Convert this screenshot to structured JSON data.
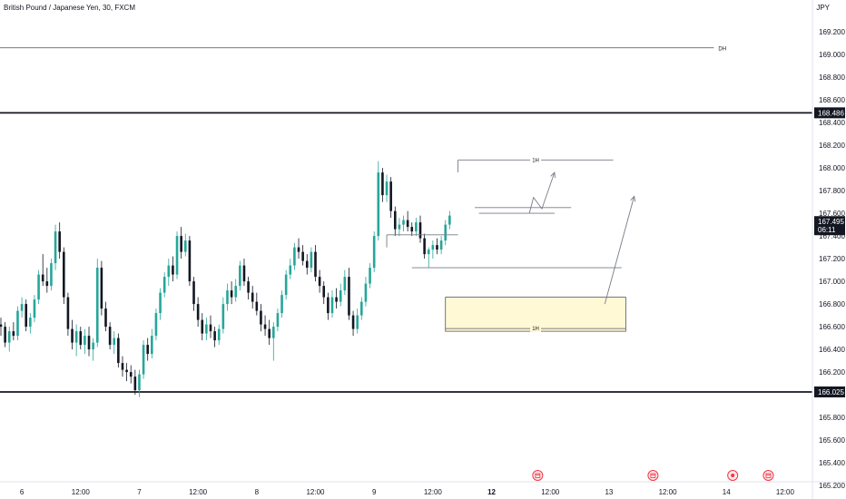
{
  "header": {
    "symbol_title": "British Pound / Japanese Yen, 30, FXCM",
    "currency": "JPY"
  },
  "colors": {
    "up": "#26a69a",
    "down": "#131722",
    "line": "#131722",
    "grey": "#787b86",
    "zone_fill": "#fff9d6",
    "zone_border": "#555555",
    "event": "#f23645"
  },
  "chart_data": {
    "type": "candlestick",
    "instrument": "British Pound / Japanese Yen",
    "timeframe": "30",
    "source": "FXCM",
    "ylim": [
      165.1,
      169.3
    ],
    "y_ticks": [
      "169.200",
      "169.000",
      "168.800",
      "168.600",
      "168.400",
      "168.200",
      "168.000",
      "167.800",
      "167.600",
      "167.400",
      "167.200",
      "167.000",
      "166.800",
      "166.600",
      "166.400",
      "166.200",
      "166.000",
      "165.800",
      "165.600",
      "165.400",
      "165.200"
    ],
    "x_ticks": [
      {
        "label": "6",
        "t": 5
      },
      {
        "label": "12:00",
        "t": 19
      },
      {
        "label": "7",
        "t": 33
      },
      {
        "label": "12:00",
        "t": 47
      },
      {
        "label": "8",
        "t": 61
      },
      {
        "label": "12:00",
        "t": 75
      },
      {
        "label": "9",
        "t": 89
      },
      {
        "label": "12:00",
        "t": 103
      },
      {
        "label": "12",
        "t": 117
      },
      {
        "label": "12:00",
        "t": 131
      },
      {
        "label": "13",
        "t": 145
      },
      {
        "label": "12:00",
        "t": 159
      },
      {
        "label": "14",
        "t": 173
      },
      {
        "label": "12:00",
        "t": 187
      }
    ],
    "candles": [
      [
        166.62,
        166.68,
        166.52,
        166.6
      ],
      [
        166.6,
        166.64,
        166.42,
        166.46
      ],
      [
        166.46,
        166.6,
        166.38,
        166.56
      ],
      [
        166.56,
        166.64,
        166.48,
        166.52
      ],
      [
        166.52,
        166.78,
        166.48,
        166.74
      ],
      [
        166.74,
        166.86,
        166.68,
        166.8
      ],
      [
        166.8,
        166.84,
        166.56,
        166.6
      ],
      [
        166.6,
        166.72,
        166.54,
        166.68
      ],
      [
        166.68,
        166.88,
        166.64,
        166.84
      ],
      [
        166.84,
        167.1,
        166.8,
        167.06
      ],
      [
        167.06,
        167.24,
        166.96,
        167.0
      ],
      [
        167.0,
        167.12,
        166.9,
        166.96
      ],
      [
        166.96,
        167.2,
        166.92,
        167.16
      ],
      [
        167.16,
        167.5,
        167.1,
        167.44
      ],
      [
        167.44,
        167.52,
        167.2,
        167.26
      ],
      [
        167.26,
        167.3,
        166.8,
        166.86
      ],
      [
        166.86,
        166.9,
        166.52,
        166.58
      ],
      [
        166.58,
        166.66,
        166.4,
        166.46
      ],
      [
        166.46,
        166.62,
        166.34,
        166.56
      ],
      [
        166.56,
        166.6,
        166.4,
        166.44
      ],
      [
        166.44,
        166.58,
        166.36,
        166.52
      ],
      [
        166.52,
        166.6,
        166.34,
        166.4
      ],
      [
        166.4,
        166.5,
        166.3,
        166.46
      ],
      [
        166.46,
        167.2,
        166.42,
        167.12
      ],
      [
        167.12,
        167.18,
        166.7,
        166.76
      ],
      [
        166.76,
        166.82,
        166.56,
        166.6
      ],
      [
        166.6,
        166.64,
        166.4,
        166.44
      ],
      [
        166.44,
        166.56,
        166.36,
        166.5
      ],
      [
        166.5,
        166.54,
        166.24,
        166.28
      ],
      [
        166.28,
        166.34,
        166.16,
        166.22
      ],
      [
        166.22,
        166.28,
        166.12,
        166.2
      ],
      [
        166.2,
        166.26,
        166.1,
        166.16
      ],
      [
        166.16,
        166.22,
        166.0,
        166.04
      ],
      [
        166.04,
        166.22,
        165.98,
        166.18
      ],
      [
        166.18,
        166.48,
        166.14,
        166.44
      ],
      [
        166.44,
        166.5,
        166.3,
        166.36
      ],
      [
        166.36,
        166.58,
        166.32,
        166.52
      ],
      [
        166.52,
        166.76,
        166.48,
        166.72
      ],
      [
        166.72,
        166.94,
        166.66,
        166.9
      ],
      [
        166.9,
        167.08,
        166.86,
        167.04
      ],
      [
        167.04,
        167.2,
        166.96,
        167.14
      ],
      [
        167.14,
        167.22,
        167.0,
        167.06
      ],
      [
        167.06,
        167.44,
        167.02,
        167.4
      ],
      [
        167.4,
        167.48,
        167.2,
        167.26
      ],
      [
        167.26,
        167.42,
        167.22,
        167.36
      ],
      [
        167.36,
        167.4,
        166.96,
        167.0
      ],
      [
        167.0,
        167.04,
        166.74,
        166.8
      ],
      [
        166.8,
        166.86,
        166.6,
        166.66
      ],
      [
        166.66,
        166.72,
        166.48,
        166.54
      ],
      [
        166.54,
        166.68,
        166.48,
        166.62
      ],
      [
        166.62,
        166.7,
        166.5,
        166.56
      ],
      [
        166.56,
        166.6,
        166.42,
        166.48
      ],
      [
        166.48,
        166.62,
        166.44,
        166.58
      ],
      [
        166.58,
        166.86,
        166.54,
        166.8
      ],
      [
        166.8,
        166.98,
        166.74,
        166.92
      ],
      [
        166.92,
        167.0,
        166.8,
        166.86
      ],
      [
        166.86,
        167.02,
        166.82,
        166.96
      ],
      [
        166.96,
        167.18,
        166.92,
        167.14
      ],
      [
        167.14,
        167.2,
        166.96,
        167.0
      ],
      [
        167.0,
        167.04,
        166.84,
        166.9
      ],
      [
        166.9,
        166.96,
        166.76,
        166.82
      ],
      [
        166.82,
        166.9,
        166.7,
        166.74
      ],
      [
        166.74,
        166.8,
        166.56,
        166.62
      ],
      [
        166.62,
        166.7,
        166.52,
        166.58
      ],
      [
        166.58,
        166.66,
        166.44,
        166.5
      ],
      [
        166.5,
        166.64,
        166.3,
        166.6
      ],
      [
        166.6,
        166.76,
        166.56,
        166.72
      ],
      [
        166.72,
        166.92,
        166.68,
        166.88
      ],
      [
        166.88,
        167.1,
        166.84,
        167.06
      ],
      [
        167.06,
        167.2,
        167.02,
        167.14
      ],
      [
        167.14,
        167.34,
        167.1,
        167.3
      ],
      [
        167.3,
        167.38,
        167.2,
        167.26
      ],
      [
        167.26,
        167.32,
        167.14,
        167.18
      ],
      [
        167.18,
        167.24,
        167.06,
        167.12
      ],
      [
        167.12,
        167.3,
        167.08,
        167.26
      ],
      [
        167.26,
        167.32,
        167.0,
        167.04
      ],
      [
        167.04,
        167.1,
        166.9,
        166.96
      ],
      [
        166.96,
        167.0,
        166.8,
        166.86
      ],
      [
        166.86,
        166.9,
        166.66,
        166.72
      ],
      [
        166.72,
        166.92,
        166.68,
        166.86
      ],
      [
        166.86,
        166.94,
        166.76,
        166.82
      ],
      [
        166.82,
        166.98,
        166.78,
        166.92
      ],
      [
        166.92,
        167.1,
        166.88,
        167.04
      ],
      [
        167.04,
        167.12,
        166.66,
        166.7
      ],
      [
        166.7,
        166.74,
        166.52,
        166.58
      ],
      [
        166.58,
        166.76,
        166.54,
        166.7
      ],
      [
        166.7,
        166.86,
        166.66,
        166.82
      ],
      [
        166.82,
        167.04,
        166.78,
        166.98
      ],
      [
        166.98,
        167.16,
        166.94,
        167.12
      ],
      [
        167.12,
        167.44,
        167.08,
        167.4
      ],
      [
        167.4,
        168.06,
        167.36,
        167.96
      ],
      [
        167.96,
        168.0,
        167.7,
        167.76
      ],
      [
        167.76,
        167.94,
        167.7,
        167.88
      ],
      [
        167.88,
        167.92,
        167.56,
        167.62
      ],
      [
        167.62,
        167.66,
        167.4,
        167.46
      ],
      [
        167.46,
        167.56,
        167.4,
        167.5
      ],
      [
        167.5,
        167.58,
        167.44,
        167.54
      ],
      [
        167.54,
        167.62,
        167.44,
        167.48
      ],
      [
        167.48,
        167.52,
        167.4,
        167.44
      ],
      [
        167.44,
        167.56,
        167.4,
        167.52
      ],
      [
        167.52,
        167.58,
        167.34,
        167.38
      ],
      [
        167.38,
        167.42,
        167.2,
        167.24
      ],
      [
        167.24,
        167.3,
        167.12,
        167.28
      ],
      [
        167.28,
        167.36,
        167.2,
        167.32
      ],
      [
        167.32,
        167.38,
        167.24,
        167.28
      ],
      [
        167.28,
        167.4,
        167.24,
        167.36
      ],
      [
        167.36,
        167.54,
        167.32,
        167.5
      ],
      [
        167.5,
        167.62,
        167.46,
        167.58
      ]
    ],
    "horizontal_levels": [
      {
        "price": 169.06,
        "label": "DH",
        "style": "thin",
        "t_end": 170
      },
      {
        "price": 168.486,
        "label": "168.486",
        "style": "thick"
      },
      {
        "price": 166.025,
        "label": "166.025",
        "style": "thick"
      }
    ],
    "current_price": {
      "value": 167.495,
      "label": "167.495",
      "countdown": "06:11"
    },
    "zone": {
      "t_start": 106,
      "t_end": 149,
      "top": 166.86,
      "bottom": 166.56,
      "label": "1H"
    },
    "annotations": [
      {
        "type": "hline",
        "price": 168.07,
        "t_start": 109,
        "t_end": 146,
        "label": "1H"
      },
      {
        "type": "hline",
        "price": 167.65,
        "t_start": 113,
        "t_end": 136
      },
      {
        "type": "hline",
        "price": 167.6,
        "t_start": 114,
        "t_end": 132
      },
      {
        "type": "hline",
        "price": 167.41,
        "t_start": 92,
        "t_end": 109
      },
      {
        "type": "hline",
        "price": 167.12,
        "t_start": 98,
        "t_end": 148
      }
    ],
    "arrows": [
      {
        "points": [
          [
            126,
            167.6
          ],
          [
            127,
            167.74
          ],
          [
            129,
            167.64
          ],
          [
            132,
            167.96
          ]
        ]
      },
      {
        "points": [
          [
            144,
            166.8
          ],
          [
            151,
            167.75
          ]
        ]
      }
    ],
    "event_markers": [
      {
        "t": 128,
        "type": "calendar"
      },
      {
        "t": 155.5,
        "type": "calendar"
      },
      {
        "t": 174.5,
        "type": "dot"
      },
      {
        "t": 183,
        "type": "calendar"
      }
    ]
  }
}
